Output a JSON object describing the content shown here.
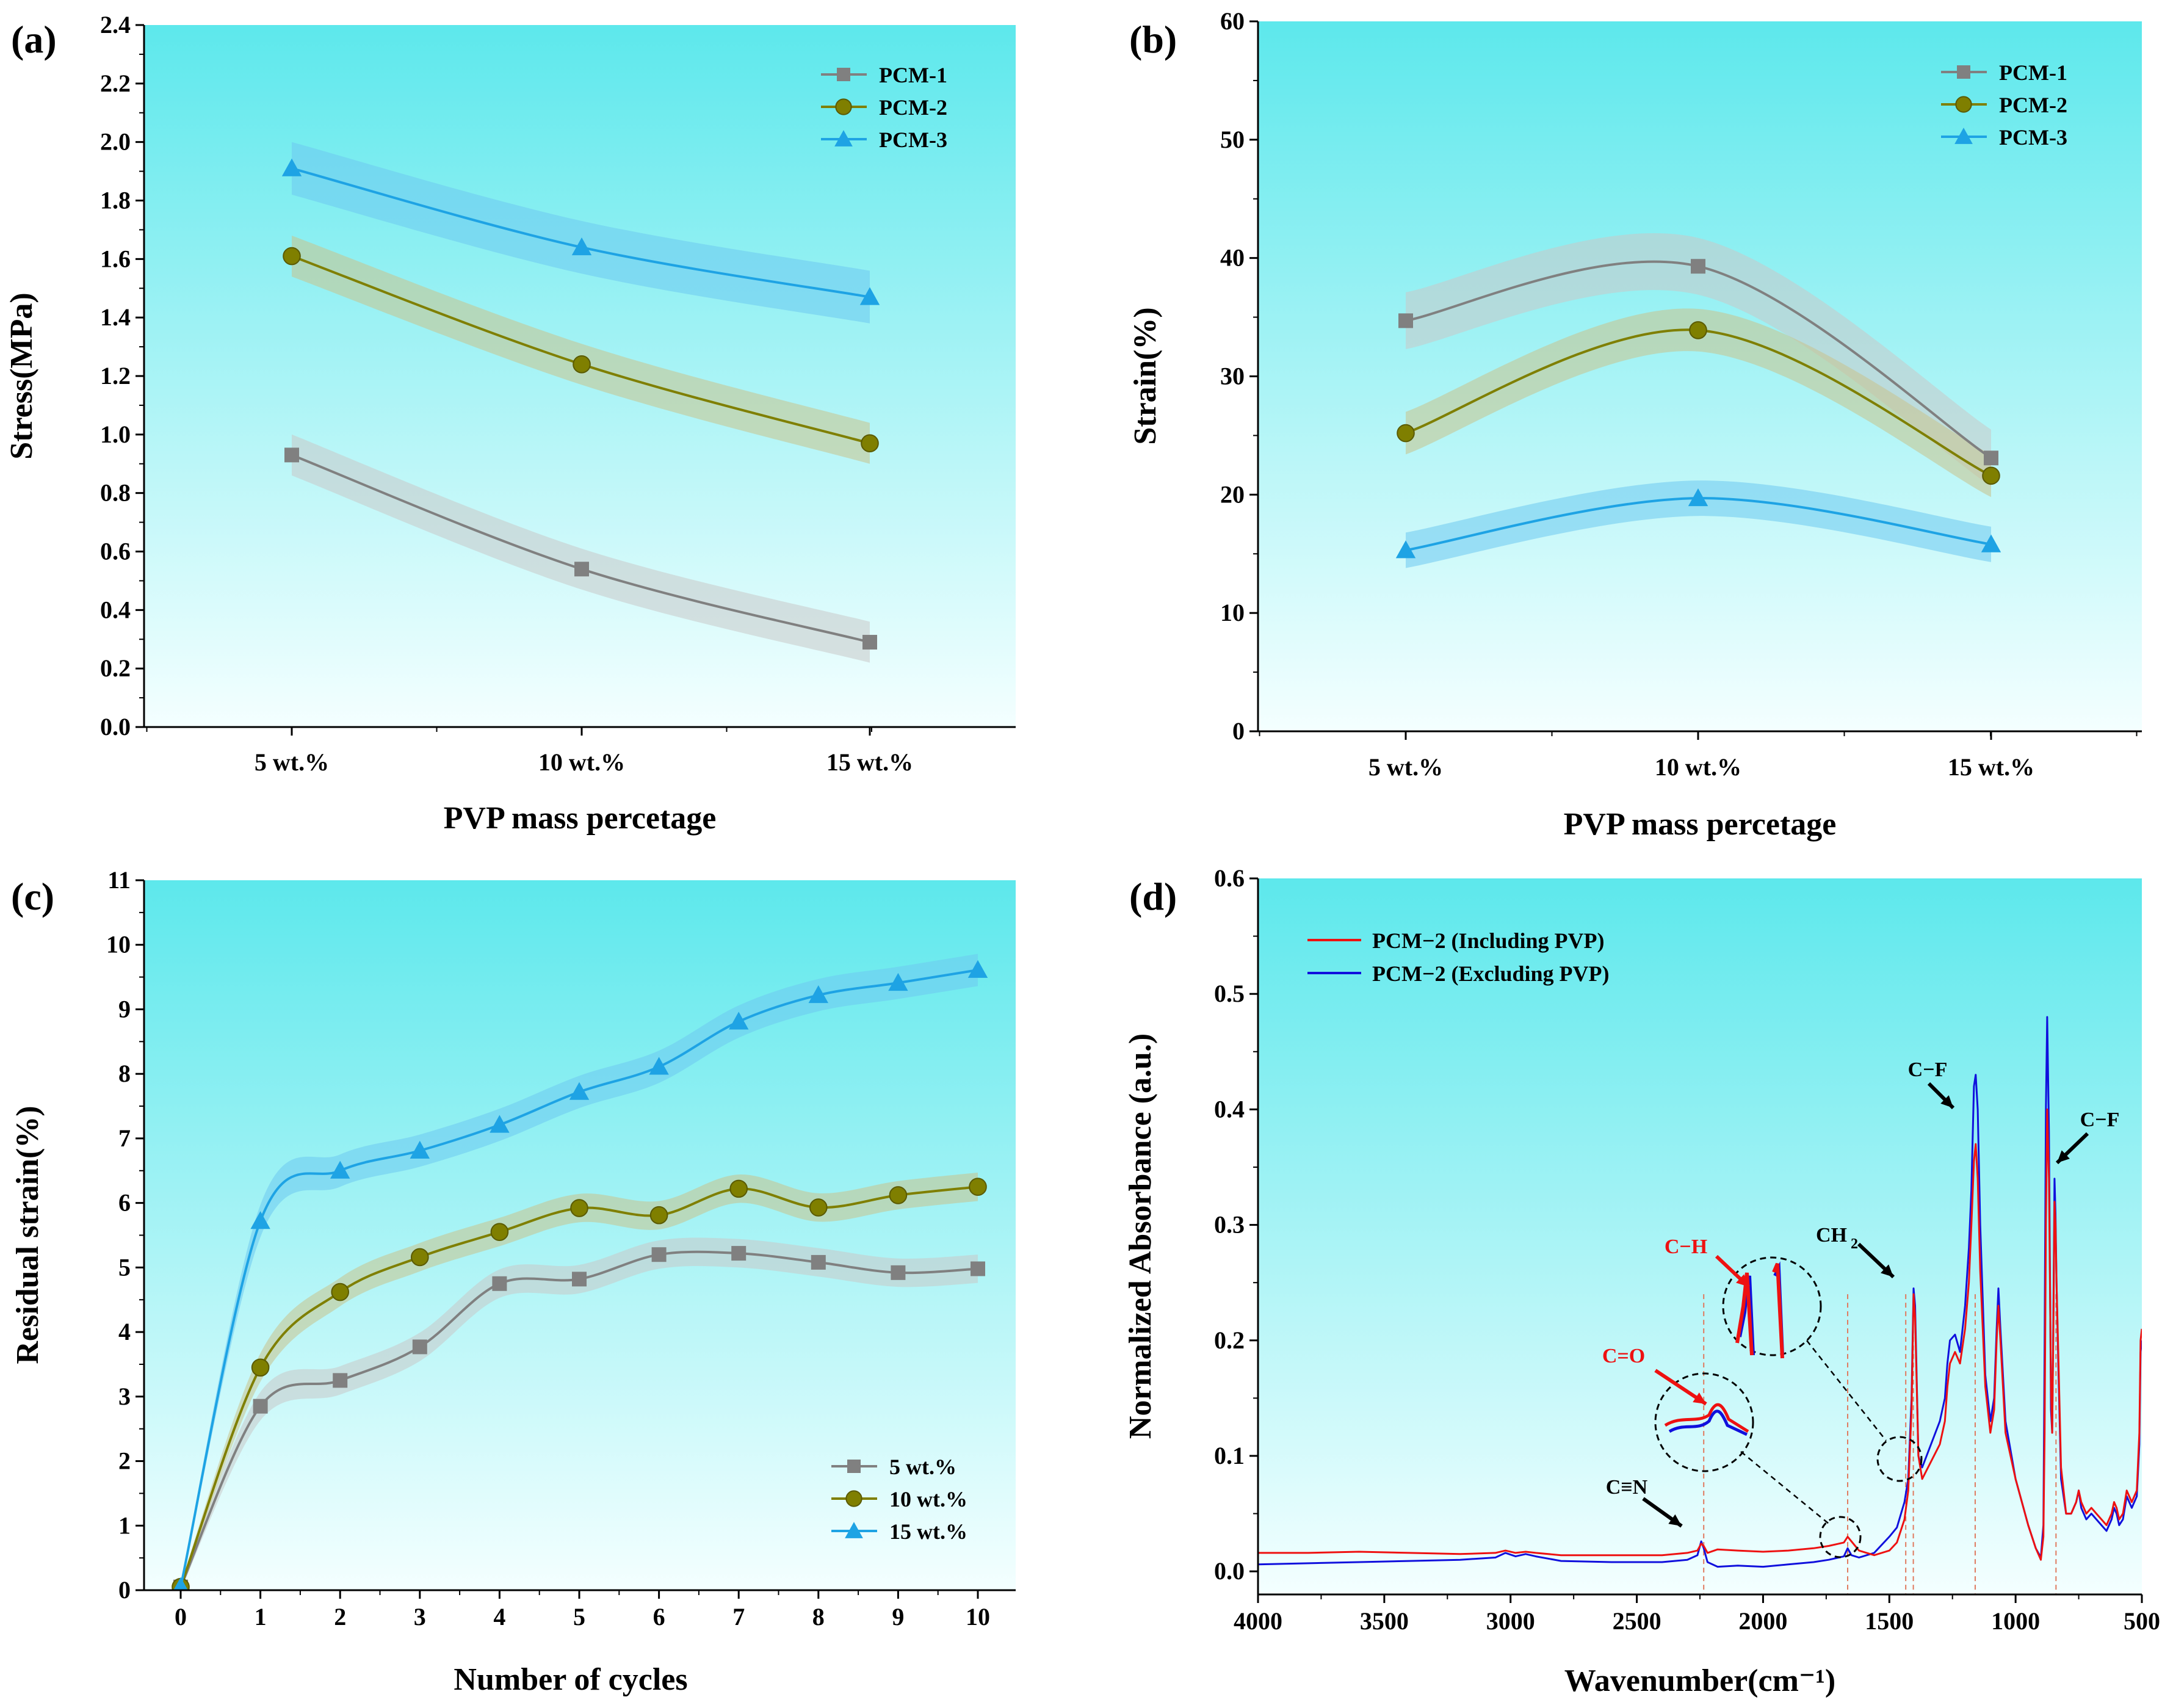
{
  "figure": {
    "panels": [
      {
        "label": "(a)"
      },
      {
        "label": "(b)"
      },
      {
        "label": "(c)"
      },
      {
        "label": "(d)"
      }
    ]
  },
  "colors": {
    "pcm1": "#808080",
    "pcm2": "#7f7f00",
    "pcm3": "#1ea3e4",
    "band1": "#c8c8c8",
    "band2": "#c9c38c",
    "band3": "#6ec9f0",
    "red": "#ee1111",
    "blue": "#1010dd",
    "bgTop": "#5de8ec",
    "bgBottom": "#f4ffff"
  },
  "chart_data": [
    {
      "panel": "(a)",
      "type": "line",
      "xlabel": "PVP mass percetage",
      "ylabel": "Stress(MPa)",
      "categories": [
        "5 wt.%",
        "10 wt.%",
        "15 wt.%"
      ],
      "ylim": [
        0,
        2.4
      ],
      "yticks": [
        "0.0",
        "0.2",
        "0.4",
        "0.6",
        "0.8",
        "1.0",
        "1.2",
        "1.4",
        "1.6",
        "1.8",
        "2.0",
        "2.2",
        "2.4"
      ],
      "legend_position": "top-right",
      "series": [
        {
          "name": "PCM-1",
          "marker": "square",
          "values": [
            0.93,
            0.54,
            0.29
          ],
          "band": 0.07
        },
        {
          "name": "PCM-2",
          "marker": "circle",
          "values": [
            1.61,
            1.24,
            0.97
          ],
          "band": 0.07
        },
        {
          "name": "PCM-3",
          "marker": "triangle",
          "values": [
            1.91,
            1.64,
            1.47
          ],
          "band": 0.09
        }
      ]
    },
    {
      "panel": "(b)",
      "type": "line",
      "xlabel": "PVP mass percetage",
      "ylabel": "Strain(%)",
      "categories": [
        "5 wt.%",
        "10 wt.%",
        "15 wt.%"
      ],
      "ylim": [
        0,
        60
      ],
      "yticks": [
        "0",
        "10",
        "20",
        "30",
        "40",
        "50",
        "60"
      ],
      "legend_position": "top-right",
      "series": [
        {
          "name": "PCM-1",
          "marker": "square",
          "values": [
            34.7,
            39.3,
            23.1
          ],
          "band": 2.4
        },
        {
          "name": "PCM-2",
          "marker": "circle",
          "values": [
            25.2,
            33.9,
            21.6
          ],
          "band": 1.8
        },
        {
          "name": "PCM-3",
          "marker": "triangle",
          "values": [
            15.3,
            19.7,
            15.8
          ],
          "band": 1.5
        }
      ]
    },
    {
      "panel": "(c)",
      "type": "line",
      "xlabel": "Number of cycles",
      "ylabel": "Residual strain(%)",
      "x": [
        0,
        1,
        2,
        3,
        4,
        5,
        6,
        7,
        8,
        9,
        10
      ],
      "xticks": [
        "0",
        "1",
        "2",
        "3",
        "4",
        "5",
        "6",
        "7",
        "8",
        "9",
        "10"
      ],
      "ylim": [
        0,
        11
      ],
      "yticks": [
        "0",
        "1",
        "2",
        "3",
        "4",
        "5",
        "6",
        "7",
        "8",
        "9",
        "10",
        "11"
      ],
      "legend_position": "bottom-right",
      "series": [
        {
          "name": "5 wt.%",
          "marker": "square",
          "values": [
            0.05,
            2.85,
            3.25,
            3.77,
            4.75,
            4.82,
            5.2,
            5.22,
            5.08,
            4.92,
            4.98
          ],
          "band": 0.22
        },
        {
          "name": "10 wt.%",
          "marker": "circle",
          "values": [
            0.05,
            3.45,
            4.62,
            5.16,
            5.55,
            5.92,
            5.81,
            6.22,
            5.93,
            6.12,
            6.25
          ],
          "band": 0.22
        },
        {
          "name": "15 wt.%",
          "marker": "triangle",
          "values": [
            0.05,
            5.72,
            6.5,
            6.81,
            7.21,
            7.72,
            8.11,
            8.81,
            9.22,
            9.41,
            9.61
          ],
          "band": 0.25
        }
      ]
    },
    {
      "panel": "(d)",
      "type": "line",
      "xlabel": "Wavenumber(cm⁻¹)",
      "ylabel": "Normalized Absorbance (a.u.)",
      "xlim": [
        4000,
        500
      ],
      "xticks": [
        "4000",
        "3500",
        "3000",
        "2500",
        "2000",
        "1500",
        "1000",
        "500"
      ],
      "ylim": [
        -0.02,
        0.6
      ],
      "yticks": [
        "0.0",
        "0.1",
        "0.2",
        "0.3",
        "0.4",
        "0.5",
        "0.6"
      ],
      "legend_position": "top-left",
      "series": [
        {
          "name": "PCM−2  (Including PVP)",
          "color": "red",
          "x": [
            4000,
            3800,
            3600,
            3400,
            3200,
            3060,
            3020,
            2980,
            2940,
            2900,
            2800,
            2600,
            2400,
            2300,
            2260,
            2245,
            2235,
            2220,
            2180,
            2100,
            2000,
            1900,
            1800,
            1740,
            1700,
            1680,
            1665,
            1650,
            1620,
            1560,
            1500,
            1470,
            1440,
            1425,
            1412,
            1404,
            1398,
            1385,
            1370,
            1300,
            1280,
            1270,
            1260,
            1240,
            1220,
            1200,
            1185,
            1175,
            1165,
            1158,
            1150,
            1140,
            1120,
            1100,
            1085,
            1075,
            1068,
            1060,
            1040,
            1000,
            950,
            920,
            900,
            890,
            885,
            880,
            875,
            868,
            860,
            855,
            850,
            846,
            842,
            838,
            830,
            820,
            800,
            780,
            760,
            750,
            740,
            720,
            700,
            680,
            660,
            640,
            620,
            610,
            600,
            590,
            575,
            560,
            540,
            520,
            510,
            505,
            500
          ],
          "y": [
            0.016,
            0.016,
            0.017,
            0.016,
            0.015,
            0.016,
            0.018,
            0.016,
            0.017,
            0.016,
            0.014,
            0.014,
            0.014,
            0.016,
            0.018,
            0.024,
            0.022,
            0.016,
            0.019,
            0.018,
            0.017,
            0.018,
            0.02,
            0.022,
            0.024,
            0.025,
            0.03,
            0.026,
            0.018,
            0.014,
            0.018,
            0.025,
            0.045,
            0.07,
            0.14,
            0.24,
            0.22,
            0.1,
            0.08,
            0.11,
            0.13,
            0.16,
            0.18,
            0.19,
            0.18,
            0.21,
            0.25,
            0.3,
            0.355,
            0.37,
            0.34,
            0.26,
            0.16,
            0.12,
            0.14,
            0.2,
            0.23,
            0.2,
            0.12,
            0.08,
            0.04,
            0.02,
            0.01,
            0.03,
            0.12,
            0.3,
            0.4,
            0.34,
            0.16,
            0.12,
            0.22,
            0.32,
            0.3,
            0.25,
            0.18,
            0.09,
            0.05,
            0.05,
            0.06,
            0.07,
            0.06,
            0.05,
            0.055,
            0.05,
            0.045,
            0.04,
            0.05,
            0.06,
            0.055,
            0.045,
            0.05,
            0.07,
            0.06,
            0.07,
            0.12,
            0.2,
            0.21
          ]
        },
        {
          "name": "PCM−2  (Excluding PVP)",
          "color": "blue",
          "x": [
            4000,
            3800,
            3600,
            3400,
            3200,
            3060,
            3020,
            2980,
            2940,
            2900,
            2800,
            2600,
            2400,
            2300,
            2260,
            2245,
            2235,
            2220,
            2180,
            2100,
            2000,
            1900,
            1800,
            1740,
            1700,
            1680,
            1665,
            1650,
            1620,
            1560,
            1500,
            1470,
            1440,
            1425,
            1412,
            1404,
            1398,
            1385,
            1370,
            1300,
            1280,
            1270,
            1260,
            1240,
            1220,
            1200,
            1185,
            1175,
            1165,
            1158,
            1150,
            1140,
            1120,
            1100,
            1085,
            1075,
            1068,
            1060,
            1040,
            1000,
            950,
            920,
            900,
            890,
            885,
            880,
            875,
            868,
            860,
            855,
            850,
            846,
            842,
            838,
            830,
            820,
            800,
            780,
            760,
            750,
            740,
            720,
            700,
            680,
            660,
            640,
            620,
            610,
            600,
            590,
            575,
            560,
            540,
            520,
            510,
            505,
            500
          ],
          "y": [
            0.006,
            0.007,
            0.008,
            0.009,
            0.01,
            0.012,
            0.016,
            0.013,
            0.015,
            0.013,
            0.009,
            0.008,
            0.008,
            0.01,
            0.014,
            0.026,
            0.02,
            0.008,
            0.004,
            0.005,
            0.004,
            0.006,
            0.008,
            0.01,
            0.012,
            0.013,
            0.02,
            0.014,
            0.012,
            0.016,
            0.03,
            0.038,
            0.06,
            0.08,
            0.15,
            0.245,
            0.23,
            0.1,
            0.09,
            0.13,
            0.15,
            0.18,
            0.2,
            0.205,
            0.19,
            0.23,
            0.28,
            0.33,
            0.42,
            0.43,
            0.4,
            0.3,
            0.17,
            0.13,
            0.15,
            0.21,
            0.245,
            0.21,
            0.13,
            0.08,
            0.04,
            0.02,
            0.012,
            0.04,
            0.2,
            0.4,
            0.48,
            0.38,
            0.14,
            0.12,
            0.23,
            0.34,
            0.31,
            0.25,
            0.17,
            0.08,
            0.05,
            0.05,
            0.06,
            0.07,
            0.055,
            0.045,
            0.05,
            0.045,
            0.04,
            0.035,
            0.045,
            0.055,
            0.05,
            0.04,
            0.045,
            0.065,
            0.055,
            0.065,
            0.11,
            0.19,
            0.2
          ]
        }
      ],
      "annotations": [
        {
          "label": "C≡N"
        },
        {
          "label": "C=O"
        },
        {
          "label": "C−H"
        },
        {
          "label": "CH",
          "sub": "2"
        },
        {
          "label": "C−F"
        },
        {
          "label": "C−F"
        }
      ],
      "guide_lines_wavenumbers": [
        2235,
        1665,
        1435,
        1405,
        1160,
        840
      ]
    }
  ]
}
